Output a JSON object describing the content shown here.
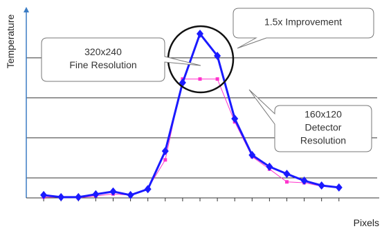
{
  "chart_data": {
    "type": "line",
    "y_label": "Temperature",
    "x_label": "Pixels",
    "x": [
      1,
      2,
      3,
      4,
      5,
      6,
      7,
      8,
      9,
      10,
      11,
      12,
      13,
      14,
      15,
      16,
      17,
      18
    ],
    "xlim": [
      0,
      20.2
    ],
    "ylim": [
      0.5,
      5.1
    ],
    "yticks": [
      1,
      2,
      3,
      4
    ],
    "grid": true,
    "series": [
      {
        "color": "#ff33cc",
        "marker": "square",
        "width": 1,
        "values": [
          0.52,
          0.52,
          0.5,
          0.55,
          0.6,
          0.57,
          0.74,
          1.45,
          3.47,
          3.47,
          3.47,
          2.4,
          1.53,
          1.22,
          0.9,
          0.88,
          0.79,
          0.76
        ]
      },
      {
        "color": "#1a1aff",
        "marker": "diamond",
        "width": 3,
        "values": [
          0.57,
          0.52,
          0.52,
          0.59,
          0.66,
          0.57,
          0.72,
          1.67,
          3.38,
          4.6,
          4.05,
          2.48,
          1.57,
          1.28,
          1.1,
          0.93,
          0.81,
          0.76
        ]
      }
    ],
    "annotations": [
      {
        "lines": [
          "320x240",
          "Fine Resolution"
        ]
      },
      {
        "lines": [
          "1.5x Improvement"
        ]
      },
      {
        "lines": [
          "160x120",
          "Detector",
          "Resolution"
        ]
      }
    ]
  }
}
